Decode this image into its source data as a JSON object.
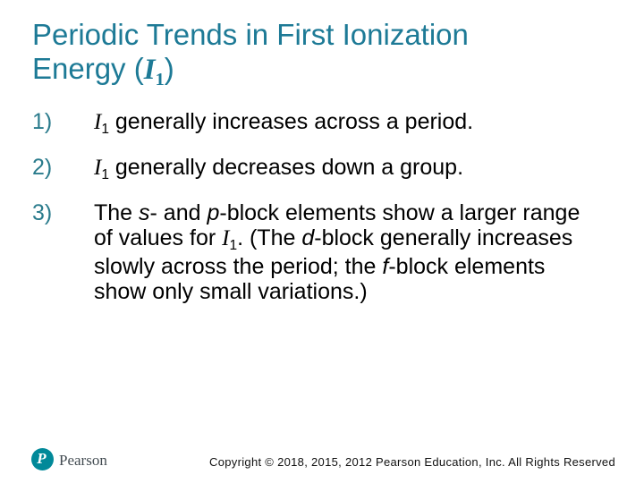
{
  "slide": {
    "title": {
      "color": "#1D7A96",
      "full_text": "Periodic Trends in First Ionization Energy (I1)",
      "segments": [
        {
          "t": "Periodic Trends in First Ionization"
        },
        {
          "br": true
        },
        {
          "t": "Energy ("
        },
        {
          "t": "I",
          "style": "symbol-b"
        },
        {
          "t": "1",
          "style": "sub-b"
        },
        {
          "t": ")"
        }
      ]
    },
    "list": {
      "number_color": "#2A7B8C",
      "items": [
        {
          "number": "1)",
          "full_text": "I1 generally increases across a period.",
          "segments": [
            {
              "t": "I",
              "style": "symbol"
            },
            {
              "t": "1",
              "style": "sub"
            },
            {
              "t": " generally increases across a period."
            }
          ]
        },
        {
          "number": "2)",
          "full_text": "I1 generally decreases down a group.",
          "segments": [
            {
              "t": "I",
              "style": "symbol"
            },
            {
              "t": "1",
              "style": "sub"
            },
            {
              "t": " generally decreases down a group."
            }
          ]
        },
        {
          "number": "3)",
          "full_text": "The s- and p-block elements show a larger range of values for I1. (The d-block generally increases slowly across the period; the f-block elements show only small variations.)",
          "segments": [
            {
              "t": "The "
            },
            {
              "t": "s",
              "style": "italic"
            },
            {
              "t": "- and "
            },
            {
              "t": "p",
              "style": "italic"
            },
            {
              "t": "-block elements show a larger range of values for "
            },
            {
              "t": "I",
              "style": "symbol"
            },
            {
              "t": "1",
              "style": "sub"
            },
            {
              "t": ". (The "
            },
            {
              "t": "d",
              "style": "italic"
            },
            {
              "t": "-block generally increases slowly across the period; the "
            },
            {
              "t": "f",
              "style": "italic"
            },
            {
              "t": "-block elements show only small variations.)"
            }
          ]
        }
      ]
    },
    "footer": {
      "logo": {
        "letter": "P",
        "circle_color": "#018999",
        "brand": "Pearson",
        "brand_color": "#434C52"
      },
      "copyright": "Copyright © 2018, 2015, 2012 Pearson Education, Inc. All Rights Reserved"
    }
  }
}
